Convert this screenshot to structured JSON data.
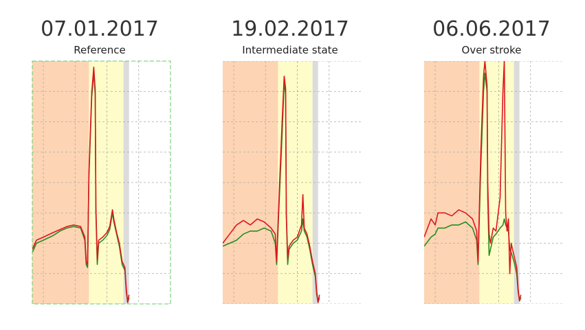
{
  "chart_data": [
    {
      "type": "line",
      "title": "07.01.2017",
      "subtitle": "Reference",
      "frame": true,
      "xlim": [
        0,
        100
      ],
      "xticks": [
        8,
        31,
        54,
        77
      ],
      "ylim": [
        0,
        8
      ],
      "yticks": [
        0,
        1,
        2,
        3,
        4,
        5,
        6,
        7,
        8
      ],
      "grid": true,
      "bands": [
        {
          "start": 0,
          "end": 41,
          "color": "#fdd5b4"
        },
        {
          "start": 41,
          "end": 66,
          "color": "#fefcc8"
        },
        {
          "start": 66,
          "end": 70,
          "color": "#dcdcdc"
        }
      ],
      "x": [
        0,
        3,
        8,
        15,
        20,
        25,
        30,
        35,
        38,
        39,
        40,
        41,
        43,
        44.5,
        45.5,
        46,
        47,
        48,
        51,
        54,
        56,
        58,
        59,
        61,
        63,
        65,
        67,
        68,
        69,
        70
      ],
      "series": [
        {
          "color": "#2a8a1e",
          "values": [
            1.7,
            2.0,
            2.1,
            2.25,
            2.4,
            2.5,
            2.55,
            2.5,
            2.1,
            1.3,
            1.2,
            4.2,
            6.8,
            7.6,
            6.9,
            3.0,
            1.3,
            2.0,
            2.1,
            2.25,
            2.45,
            3.0,
            2.7,
            2.3,
            1.9,
            1.3,
            1.1,
            0.4,
            0.05,
            0.2
          ]
        },
        {
          "color": "#e0141e",
          "values": [
            1.8,
            2.1,
            2.2,
            2.35,
            2.45,
            2.55,
            2.6,
            2.55,
            2.2,
            1.4,
            1.3,
            4.35,
            6.95,
            7.8,
            7.05,
            3.2,
            1.45,
            2.1,
            2.2,
            2.35,
            2.55,
            3.1,
            2.8,
            2.35,
            2.0,
            1.4,
            1.2,
            0.5,
            0.05,
            0.3
          ]
        }
      ]
    },
    {
      "type": "line",
      "title": "19.02.2017",
      "subtitle": "Intermediate state",
      "frame": false,
      "xlim": [
        0,
        100
      ],
      "xticks": [
        8,
        31,
        54,
        77
      ],
      "ylim": [
        0,
        8
      ],
      "yticks": [
        0,
        1,
        2,
        3,
        4,
        5,
        6,
        7,
        8
      ],
      "grid": true,
      "bands": [
        {
          "start": 0,
          "end": 40,
          "color": "#fdd5b4"
        },
        {
          "start": 40,
          "end": 65,
          "color": "#fefcc8"
        },
        {
          "start": 65,
          "end": 69,
          "color": "#dcdcdc"
        }
      ],
      "x": [
        0,
        5,
        10,
        15,
        20,
        25,
        30,
        35,
        38,
        39,
        41,
        43,
        44.5,
        45.5,
        46,
        47,
        48,
        51,
        54,
        57,
        58,
        59,
        61,
        63,
        65,
        67,
        68,
        69,
        70
      ],
      "series": [
        {
          "color": "#2a8a1e",
          "values": [
            1.9,
            2.0,
            2.1,
            2.3,
            2.4,
            2.4,
            2.5,
            2.4,
            2.0,
            1.3,
            3.5,
            5.6,
            7.3,
            6.9,
            2.9,
            1.3,
            1.8,
            2.0,
            2.1,
            2.4,
            2.8,
            2.4,
            2.2,
            1.8,
            1.3,
            0.9,
            0.3,
            0.05,
            0.2
          ]
        },
        {
          "color": "#e0141e",
          "values": [
            2.0,
            2.3,
            2.6,
            2.75,
            2.6,
            2.8,
            2.7,
            2.5,
            2.3,
            1.4,
            3.8,
            6.0,
            7.5,
            7.1,
            3.0,
            1.5,
            1.9,
            2.1,
            2.2,
            2.6,
            3.6,
            2.5,
            2.3,
            1.9,
            1.4,
            1.0,
            0.4,
            0.05,
            0.3
          ]
        }
      ]
    },
    {
      "type": "line",
      "title": "06.06.2017",
      "subtitle": "Over stroke",
      "frame": false,
      "xlim": [
        0,
        100
      ],
      "xticks": [
        8,
        31,
        54,
        77
      ],
      "ylim": [
        0,
        8
      ],
      "yticks": [
        0,
        1,
        2,
        3,
        4,
        5,
        6,
        7,
        8
      ],
      "grid": true,
      "bands": [
        {
          "start": 0,
          "end": 40,
          "color": "#fdd5b4"
        },
        {
          "start": 40,
          "end": 65,
          "color": "#fefcc8"
        },
        {
          "start": 65,
          "end": 69,
          "color": "#dcdcdc"
        }
      ],
      "x": [
        0,
        5,
        8,
        10,
        15,
        20,
        25,
        30,
        35,
        38,
        39,
        41,
        43,
        44,
        45.5,
        46,
        47,
        48,
        50,
        52,
        55,
        57,
        58,
        59,
        60,
        61,
        62,
        63,
        65,
        67,
        68,
        69,
        70
      ],
      "series": [
        {
          "color": "#2a8a1e",
          "values": [
            1.9,
            2.2,
            2.3,
            2.5,
            2.5,
            2.6,
            2.6,
            2.7,
            2.5,
            2.1,
            1.3,
            4.5,
            7.0,
            7.6,
            7.0,
            3.5,
            1.6,
            1.8,
            2.2,
            2.3,
            2.5,
            2.6,
            2.8,
            2.6,
            2.5,
            2.4,
            1.8,
            1.7,
            1.4,
            1.0,
            0.4,
            0.1,
            0.2
          ]
        },
        {
          "color": "#e0141e",
          "values": [
            2.2,
            2.8,
            2.6,
            3.0,
            3.0,
            2.9,
            3.1,
            3.0,
            2.8,
            2.4,
            1.4,
            5.0,
            7.5,
            8.0,
            7.2,
            4.0,
            2.3,
            2.0,
            2.5,
            2.4,
            3.5,
            7.0,
            8.0,
            3.0,
            2.4,
            2.8,
            1.0,
            2.0,
            1.6,
            1.2,
            0.5,
            0.1,
            0.3
          ]
        }
      ]
    }
  ]
}
